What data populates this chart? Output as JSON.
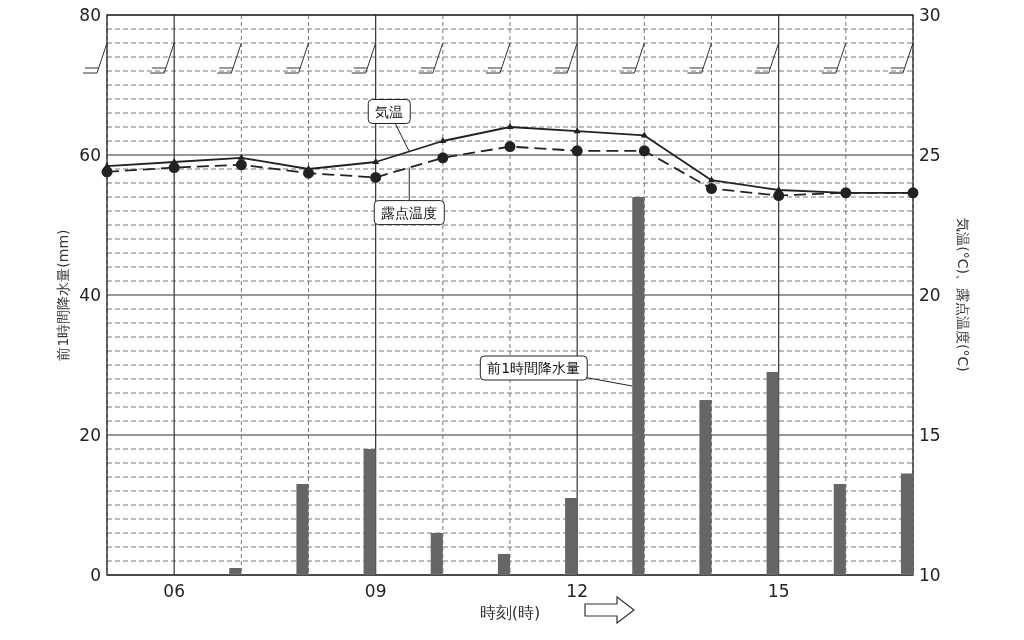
{
  "chart_data": {
    "type": "bar",
    "xlabel": "時刻(時)",
    "ylabel": "前1時間降水量(mm)",
    "y2label": "気温(°C)、露点温度(°C)",
    "xlim": [
      5,
      17
    ],
    "xticks": [
      {
        "value": 5,
        "label": null
      },
      {
        "value": 6,
        "label": "06"
      },
      {
        "value": 7,
        "label": null
      },
      {
        "value": 8,
        "label": null
      },
      {
        "value": 9,
        "label": "09"
      },
      {
        "value": 10,
        "label": null
      },
      {
        "value": 11,
        "label": null
      },
      {
        "value": 12,
        "label": "12"
      },
      {
        "value": 13,
        "label": null
      },
      {
        "value": 14,
        "label": null
      },
      {
        "value": 15,
        "label": "15"
      },
      {
        "value": 16,
        "label": null
      },
      {
        "value": 17,
        "label": null
      }
    ],
    "ylim": [
      0,
      80
    ],
    "yticks": [
      0,
      {
        "value": 2,
        "label": null
      },
      {
        "value": 4,
        "label": null
      },
      {
        "value": 6,
        "label": null
      },
      {
        "value": 8,
        "label": null
      },
      {
        "value": 10,
        "label": null
      },
      {
        "value": 12,
        "label": null
      },
      {
        "value": 14,
        "label": null
      },
      {
        "value": 16,
        "label": null
      },
      {
        "value": 18,
        "label": null
      },
      20,
      {
        "value": 22,
        "label": null
      },
      {
        "value": 24,
        "label": null
      },
      {
        "value": 26,
        "label": null
      },
      {
        "value": 28,
        "label": null
      },
      {
        "value": 30,
        "label": null
      },
      {
        "value": 32,
        "label": null
      },
      {
        "value": 34,
        "label": null
      },
      {
        "value": 36,
        "label": null
      },
      {
        "value": 38,
        "label": null
      },
      40,
      {
        "value": 42,
        "label": null
      },
      {
        "value": 44,
        "label": null
      },
      {
        "value": 46,
        "label": null
      },
      {
        "value": 48,
        "label": null
      },
      {
        "value": 50,
        "label": null
      },
      {
        "value": 52,
        "label": null
      },
      {
        "value": 54,
        "label": null
      },
      {
        "value": 56,
        "label": null
      },
      {
        "value": 58,
        "label": null
      },
      60,
      {
        "value": 62,
        "label": null
      },
      {
        "value": 64,
        "label": null
      },
      {
        "value": 66,
        "label": null
      },
      {
        "value": 68,
        "label": null
      },
      {
        "value": 70,
        "label": null
      },
      {
        "value": 72,
        "label": null
      },
      {
        "value": 74,
        "label": null
      },
      {
        "value": 76,
        "label": null
      },
      {
        "value": 78,
        "label": null
      },
      80
    ],
    "y2lim": [
      10,
      30
    ],
    "y2ticks": [
      10,
      15,
      20,
      25,
      30
    ],
    "grid": true,
    "legend": false,
    "series": [
      {
        "name": "前1時間降水量",
        "color": "#666666",
        "x": [
          7,
          8,
          9,
          10,
          11,
          12,
          13,
          14,
          15,
          16,
          17
        ],
        "values": [
          1,
          13,
          18,
          6,
          3,
          11,
          54,
          25,
          29,
          13,
          14.5
        ]
      },
      {
        "name": "気温",
        "type": "line",
        "axis": "y2",
        "color": "#222222",
        "marker": "triangle",
        "line_style": "solid",
        "x": [
          5,
          6,
          7,
          8,
          9,
          10,
          11,
          12,
          13,
          14,
          15,
          16,
          17
        ],
        "values": [
          24.6,
          24.75,
          24.9,
          24.5,
          24.75,
          25.5,
          26.0,
          25.85,
          25.7,
          24.1,
          23.75,
          23.65,
          23.65
        ]
      },
      {
        "name": "露点温度",
        "type": "line",
        "axis": "y2",
        "color": "#222222",
        "marker": "circle",
        "line_style": "dashed",
        "x": [
          5,
          6,
          7,
          8,
          9,
          10,
          11,
          12,
          13,
          14,
          15,
          16,
          17
        ],
        "values": [
          24.4,
          24.55,
          24.65,
          24.35,
          24.2,
          24.9,
          25.3,
          25.15,
          25.15,
          23.8,
          23.55,
          23.65,
          23.65
        ]
      }
    ]
  }
}
